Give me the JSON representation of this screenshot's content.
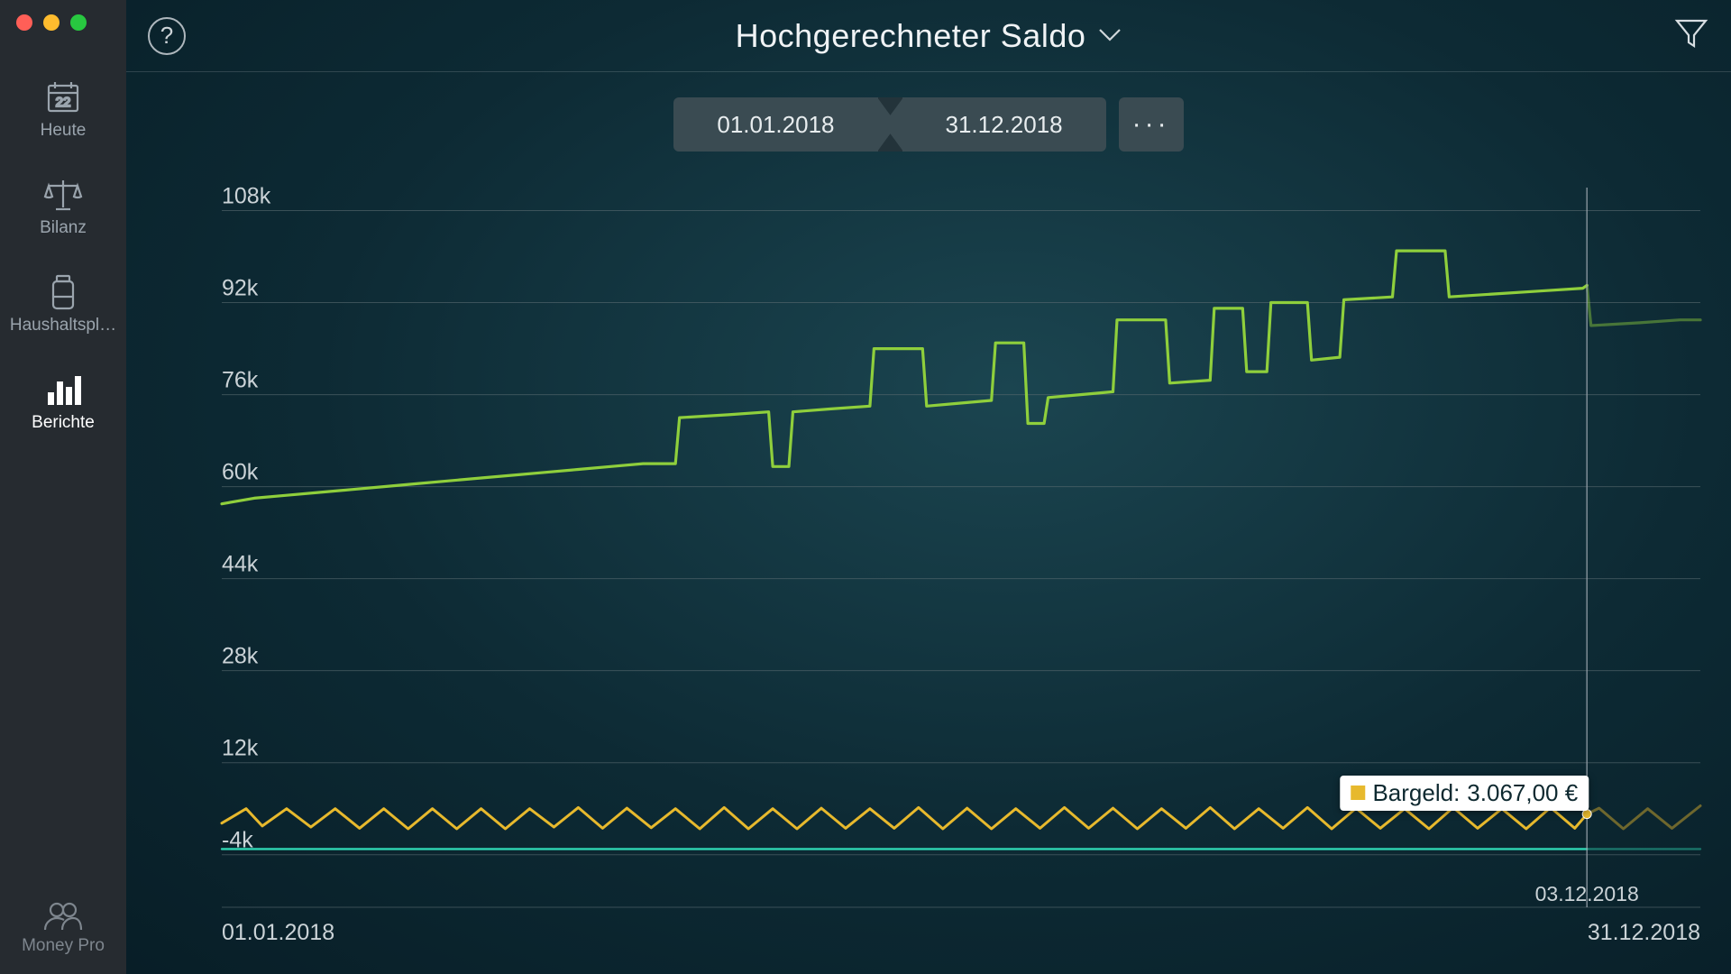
{
  "window": {
    "traffic_colors": [
      "#ff5f57",
      "#febc2e",
      "#28c840"
    ]
  },
  "sidebar": {
    "items": [
      {
        "key": "today",
        "label": "Heute",
        "icon": "calendar",
        "calendar_day": "22"
      },
      {
        "key": "balance",
        "label": "Bilanz",
        "icon": "scales"
      },
      {
        "key": "budget",
        "label": "Haushaltspl…",
        "icon": "jar"
      },
      {
        "key": "reports",
        "label": "Berichte",
        "icon": "bars",
        "active": true
      }
    ],
    "bottom": {
      "label": "Money Pro",
      "icon": "people"
    }
  },
  "header": {
    "title": "Hochgerechneter Saldo",
    "help_icon": "question",
    "filter_icon": "funnel"
  },
  "date_range": {
    "from": "01.01.2018",
    "to": "31.12.2018",
    "more_label": "···"
  },
  "chart": {
    "type": "line",
    "background": "transparent",
    "grid_color": "#5a6b71",
    "axis_text_color": "#cbd3d7",
    "label_fontsize": 25,
    "y_ticks": [
      -4,
      12,
      28,
      44,
      60,
      76,
      92,
      108
    ],
    "y_tick_suffix": "k",
    "ylim": [
      -10,
      112
    ],
    "xlim": [
      0,
      365
    ],
    "x_axis_labels": {
      "start": "01.01.2018",
      "end": "31.12.2018"
    },
    "cursor": {
      "x": 337,
      "date_label": "03.12.2018",
      "line_color": "#9aa4ad"
    },
    "tooltip": {
      "series_key": "cash",
      "label": "Bargeld:",
      "value_text": "3.067,00 €",
      "swatch_color": "#e7b92d",
      "at_x": 337,
      "at_y": 3.067
    },
    "series": [
      {
        "key": "total",
        "color": "#8fcf3c",
        "width": 3.2,
        "dim_after_cursor": true,
        "points": [
          [
            0,
            57
          ],
          [
            8,
            58
          ],
          [
            16,
            58.5
          ],
          [
            24,
            59
          ],
          [
            32,
            59.5
          ],
          [
            40,
            60
          ],
          [
            48,
            60.5
          ],
          [
            56,
            61
          ],
          [
            64,
            61.5
          ],
          [
            72,
            62
          ],
          [
            80,
            62.5
          ],
          [
            88,
            63
          ],
          [
            96,
            63.5
          ],
          [
            104,
            64
          ],
          [
            112,
            64
          ],
          [
            113,
            72
          ],
          [
            125,
            72.5
          ],
          [
            135,
            73
          ],
          [
            136,
            63.5
          ],
          [
            140,
            63.5
          ],
          [
            141,
            73
          ],
          [
            150,
            73.5
          ],
          [
            160,
            74
          ],
          [
            161,
            84
          ],
          [
            173,
            84
          ],
          [
            174,
            74
          ],
          [
            182,
            74.5
          ],
          [
            190,
            75
          ],
          [
            191,
            85
          ],
          [
            198,
            85
          ],
          [
            199,
            71
          ],
          [
            203,
            71
          ],
          [
            204,
            75.5
          ],
          [
            212,
            76
          ],
          [
            220,
            76.5
          ],
          [
            221,
            89
          ],
          [
            233,
            89
          ],
          [
            234,
            78
          ],
          [
            244,
            78.5
          ],
          [
            245,
            91
          ],
          [
            252,
            91
          ],
          [
            253,
            80
          ],
          [
            258,
            80
          ],
          [
            259,
            92
          ],
          [
            268,
            92
          ],
          [
            269,
            82
          ],
          [
            276,
            82.5
          ],
          [
            277,
            92.5
          ],
          [
            289,
            93
          ],
          [
            290,
            101
          ],
          [
            302,
            101
          ],
          [
            303,
            93
          ],
          [
            314,
            93.5
          ],
          [
            325,
            94
          ],
          [
            336,
            94.5
          ],
          [
            337,
            95
          ],
          [
            338,
            88
          ],
          [
            350,
            88.5
          ],
          [
            360,
            89
          ],
          [
            365,
            89
          ]
        ]
      },
      {
        "key": "cash",
        "color": "#e7b92d",
        "width": 3.0,
        "dim_after_cursor": true,
        "points": [
          [
            0,
            1.5
          ],
          [
            6,
            4
          ],
          [
            10,
            1
          ],
          [
            16,
            4
          ],
          [
            22,
            0.8
          ],
          [
            28,
            4
          ],
          [
            34,
            0.6
          ],
          [
            40,
            4
          ],
          [
            46,
            0.5
          ],
          [
            52,
            4
          ],
          [
            58,
            0.5
          ],
          [
            64,
            4
          ],
          [
            70,
            0.5
          ],
          [
            76,
            4
          ],
          [
            82,
            0.8
          ],
          [
            88,
            4.2
          ],
          [
            94,
            0.6
          ],
          [
            100,
            4.1
          ],
          [
            106,
            0.7
          ],
          [
            112,
            4
          ],
          [
            118,
            0.5
          ],
          [
            124,
            4.2
          ],
          [
            130,
            0.5
          ],
          [
            136,
            4
          ],
          [
            142,
            0.5
          ],
          [
            148,
            4.1
          ],
          [
            154,
            0.6
          ],
          [
            160,
            4
          ],
          [
            166,
            0.6
          ],
          [
            172,
            4.2
          ],
          [
            178,
            0.5
          ],
          [
            184,
            4.1
          ],
          [
            190,
            0.5
          ],
          [
            196,
            4
          ],
          [
            202,
            0.6
          ],
          [
            208,
            4.2
          ],
          [
            214,
            0.6
          ],
          [
            220,
            4.1
          ],
          [
            226,
            0.5
          ],
          [
            232,
            4
          ],
          [
            238,
            0.6
          ],
          [
            244,
            4.2
          ],
          [
            250,
            0.5
          ],
          [
            256,
            4
          ],
          [
            262,
            0.6
          ],
          [
            268,
            4.2
          ],
          [
            274,
            0.5
          ],
          [
            280,
            4.1
          ],
          [
            286,
            0.6
          ],
          [
            292,
            4
          ],
          [
            298,
            0.5
          ],
          [
            304,
            4.2
          ],
          [
            310,
            0.6
          ],
          [
            316,
            4
          ],
          [
            322,
            0.5
          ],
          [
            328,
            4.2
          ],
          [
            334,
            0.6
          ],
          [
            337,
            3.07
          ],
          [
            340,
            4.1
          ],
          [
            346,
            0.5
          ],
          [
            352,
            4
          ],
          [
            358,
            0.6
          ],
          [
            365,
            4.5
          ]
        ]
      },
      {
        "key": "account3",
        "color": "#2fd6b3",
        "width": 2.4,
        "dim_after_cursor": true,
        "points": [
          [
            0,
            -3
          ],
          [
            40,
            -3
          ],
          [
            80,
            -3
          ],
          [
            120,
            -3
          ],
          [
            160,
            -3
          ],
          [
            200,
            -3
          ],
          [
            240,
            -3
          ],
          [
            280,
            -3
          ],
          [
            320,
            -3
          ],
          [
            337,
            -3
          ],
          [
            365,
            -3
          ]
        ]
      }
    ]
  }
}
